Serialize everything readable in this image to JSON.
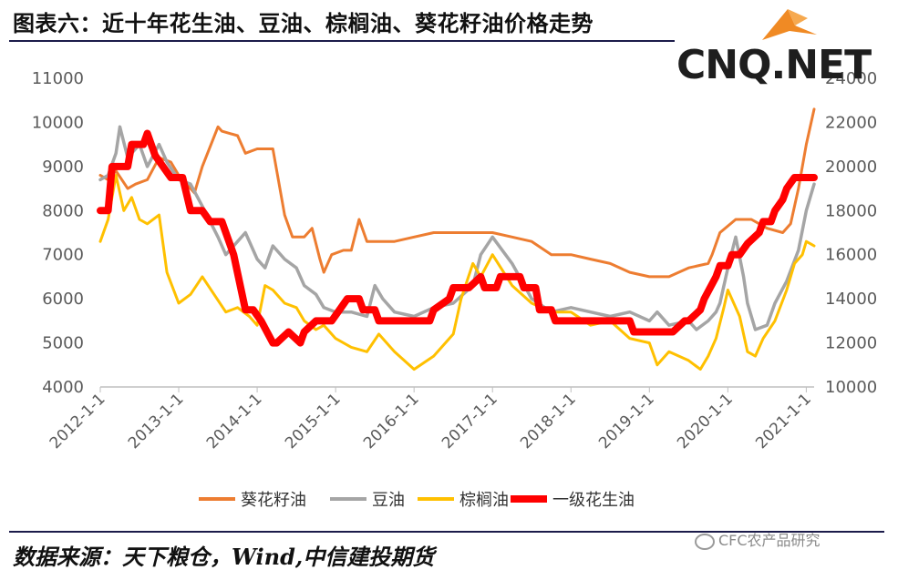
{
  "header": {
    "title": "图表六：近十年花生油、豆油、棕榈油、葵花籽油价格走势"
  },
  "logo": {
    "text": "CNQ.NET"
  },
  "footer": {
    "source": "数据来源：天下粮仓，Wind,中信建投期货",
    "watermark": "CFC农产品研究"
  },
  "colors": {
    "sunflower": "#ED7D31",
    "soybean": "#A5A5A5",
    "palm": "#FFC000",
    "peanut": "#FF0000"
  },
  "chart_data": {
    "type": "line",
    "x_tick_labels": [
      "2012-1-1",
      "2013-1-1",
      "2014-1-1",
      "2015-1-1",
      "2016-1-1",
      "2017-1-1",
      "2018-1-1",
      "2019-1-1",
      "2020-1-1",
      "2021-1-1"
    ],
    "y_left": {
      "ylim": [
        4000,
        11000
      ],
      "ticks": [
        4000,
        5000,
        6000,
        7000,
        8000,
        9000,
        10000,
        11000
      ]
    },
    "y_right": {
      "ylim": [
        10000,
        24000
      ],
      "ticks": [
        10000,
        12000,
        14000,
        16000,
        18000,
        20000,
        22000,
        24000
      ]
    },
    "legend": {
      "position": "bottom",
      "entries": [
        "葵花籽油",
        "豆油",
        "棕榈油",
        "一级花生油"
      ]
    },
    "series": [
      {
        "name": "葵花籽油",
        "axis": "left",
        "color": "#ED7D31",
        "x": [
          2012.0,
          2012.1,
          2012.2,
          2012.35,
          2012.45,
          2012.6,
          2012.75,
          2012.9,
          2013.0,
          2013.2,
          2013.3,
          2013.5,
          2013.55,
          2013.75,
          2013.85,
          2014.0,
          2014.2,
          2014.25,
          2014.35,
          2014.45,
          2014.6,
          2014.7,
          2014.8,
          2014.85,
          2014.95,
          2015.1,
          2015.2,
          2015.3,
          2015.4,
          2015.5,
          2015.75,
          2016.0,
          2016.25,
          2016.5,
          2016.75,
          2017.0,
          2017.25,
          2017.5,
          2017.75,
          2018.0,
          2018.25,
          2018.5,
          2018.75,
          2019.0,
          2019.25,
          2019.5,
          2019.75,
          2019.8,
          2019.9,
          2020.1,
          2020.3,
          2020.5,
          2020.7,
          2020.8,
          2020.9,
          2021.0,
          2021.1
        ],
        "y": [
          8800,
          8700,
          8900,
          8500,
          8600,
          8700,
          9200,
          9100,
          8800,
          8400,
          9000,
          9900,
          9800,
          9700,
          9300,
          9400,
          9400,
          8900,
          7900,
          7400,
          7400,
          7600,
          6900,
          6600,
          7000,
          7100,
          7100,
          7800,
          7300,
          7300,
          7300,
          7400,
          7500,
          7500,
          7500,
          7500,
          7400,
          7300,
          7000,
          7000,
          6900,
          6800,
          6600,
          6500,
          6500,
          6700,
          6800,
          7000,
          7500,
          7800,
          7800,
          7600,
          7500,
          7700,
          8500,
          9500,
          10300
        ]
      },
      {
        "name": "豆油",
        "axis": "left",
        "color": "#A5A5A5",
        "x": [
          2012.0,
          2012.1,
          2012.2,
          2012.25,
          2012.35,
          2012.5,
          2012.6,
          2012.75,
          2012.85,
          2013.0,
          2013.15,
          2013.3,
          2013.5,
          2013.6,
          2013.75,
          2013.85,
          2014.0,
          2014.1,
          2014.2,
          2014.35,
          2014.5,
          2014.6,
          2014.75,
          2014.85,
          2015.0,
          2015.2,
          2015.4,
          2015.5,
          2015.6,
          2015.75,
          2016.0,
          2016.25,
          2016.5,
          2016.75,
          2016.85,
          2017.0,
          2017.25,
          2017.5,
          2017.75,
          2018.0,
          2018.25,
          2018.5,
          2018.75,
          2019.0,
          2019.1,
          2019.25,
          2019.5,
          2019.6,
          2019.75,
          2019.85,
          2019.9,
          2020.0,
          2020.1,
          2020.2,
          2020.25,
          2020.35,
          2020.5,
          2020.6,
          2020.75,
          2020.9,
          2021.0,
          2021.1
        ],
        "y": [
          8700,
          8800,
          9300,
          9900,
          9200,
          9500,
          9000,
          9500,
          9100,
          8700,
          8600,
          8100,
          7400,
          7000,
          7300,
          7500,
          6900,
          6700,
          7200,
          6900,
          6700,
          6300,
          6100,
          5800,
          5700,
          5700,
          5600,
          6300,
          6000,
          5700,
          5600,
          5800,
          5900,
          6300,
          7000,
          7400,
          6800,
          6000,
          5700,
          5800,
          5700,
          5600,
          5700,
          5500,
          5700,
          5400,
          5500,
          5300,
          5500,
          5700,
          5900,
          6700,
          7400,
          6500,
          5900,
          5300,
          5400,
          5900,
          6400,
          7100,
          8000,
          8600
        ]
      },
      {
        "name": "棕榈油",
        "axis": "left",
        "color": "#FFC000",
        "x": [
          2012.0,
          2012.1,
          2012.2,
          2012.3,
          2012.4,
          2012.5,
          2012.6,
          2012.75,
          2012.85,
          2013.0,
          2013.15,
          2013.3,
          2013.45,
          2013.6,
          2013.75,
          2013.9,
          2014.0,
          2014.1,
          2014.2,
          2014.35,
          2014.5,
          2014.6,
          2014.75,
          2014.85,
          2015.0,
          2015.2,
          2015.4,
          2015.55,
          2015.75,
          2016.0,
          2016.25,
          2016.5,
          2016.6,
          2016.75,
          2016.85,
          2017.0,
          2017.25,
          2017.5,
          2017.75,
          2018.0,
          2018.25,
          2018.5,
          2018.75,
          2019.0,
          2019.1,
          2019.25,
          2019.5,
          2019.65,
          2019.75,
          2019.85,
          2019.95,
          2020.0,
          2020.15,
          2020.25,
          2020.35,
          2020.45,
          2020.6,
          2020.75,
          2020.85,
          2020.95,
          2021.0,
          2021.1
        ],
        "y": [
          7300,
          7800,
          8800,
          8000,
          8300,
          7800,
          7700,
          7900,
          6600,
          5900,
          6100,
          6500,
          6100,
          5700,
          5800,
          5600,
          5400,
          6300,
          6200,
          5900,
          5800,
          5500,
          5300,
          5400,
          5100,
          4900,
          4800,
          5200,
          4800,
          4400,
          4700,
          5200,
          6000,
          6800,
          6500,
          7000,
          6300,
          5900,
          5700,
          5700,
          5400,
          5500,
          5100,
          5000,
          4500,
          4800,
          4600,
          4400,
          4700,
          5100,
          5800,
          6200,
          5600,
          4800,
          4700,
          5100,
          5500,
          6200,
          6800,
          7000,
          7300,
          7200
        ]
      },
      {
        "name": "一级花生油",
        "axis": "right",
        "color": "#FF0000",
        "x": [
          2012.0,
          2012.1,
          2012.15,
          2012.35,
          2012.4,
          2012.55,
          2012.6,
          2012.7,
          2012.8,
          2012.9,
          2013.05,
          2013.15,
          2013.3,
          2013.4,
          2013.55,
          2013.7,
          2013.85,
          2013.95,
          2014.05,
          2014.2,
          2014.25,
          2014.4,
          2014.55,
          2014.6,
          2014.75,
          2014.85,
          2014.95,
          2015.05,
          2015.15,
          2015.3,
          2015.35,
          2015.5,
          2015.55,
          2015.7,
          2015.75,
          2016.0,
          2016.2,
          2016.25,
          2016.45,
          2016.5,
          2016.65,
          2016.7,
          2016.85,
          2016.9,
          2017.05,
          2017.1,
          2017.35,
          2017.4,
          2017.55,
          2017.6,
          2017.75,
          2017.8,
          2017.95,
          2018.0,
          2018.25,
          2018.3,
          2018.5,
          2018.55,
          2018.75,
          2018.8,
          2019.0,
          2019.05,
          2019.25,
          2019.3,
          2019.45,
          2019.5,
          2019.65,
          2019.7,
          2019.85,
          2019.9,
          2020.0,
          2020.05,
          2020.15,
          2020.25,
          2020.4,
          2020.45,
          2020.55,
          2020.6,
          2020.7,
          2020.75,
          2020.85,
          2020.9,
          2021.0,
          2021.05,
          2021.1
        ],
        "y": [
          18000,
          18000,
          20000,
          20000,
          21000,
          21000,
          21500,
          20500,
          20000,
          19500,
          19500,
          18000,
          18000,
          17500,
          17500,
          16000,
          13500,
          13500,
          13000,
          12000,
          12000,
          12500,
          12000,
          12500,
          13000,
          13000,
          13000,
          13500,
          14000,
          14000,
          13500,
          13500,
          13000,
          13000,
          13000,
          13000,
          13000,
          13500,
          14000,
          14500,
          14500,
          14500,
          15000,
          14500,
          14500,
          15000,
          15000,
          14500,
          14500,
          13500,
          13500,
          13000,
          13000,
          13000,
          13000,
          13000,
          13000,
          13000,
          13000,
          12500,
          12500,
          12500,
          12500,
          12500,
          13000,
          13000,
          13500,
          14000,
          15000,
          15500,
          15500,
          16000,
          16000,
          16500,
          17000,
          17500,
          17500,
          18000,
          18500,
          19000,
          19500,
          19500,
          19500,
          19500,
          19500
        ]
      }
    ]
  }
}
